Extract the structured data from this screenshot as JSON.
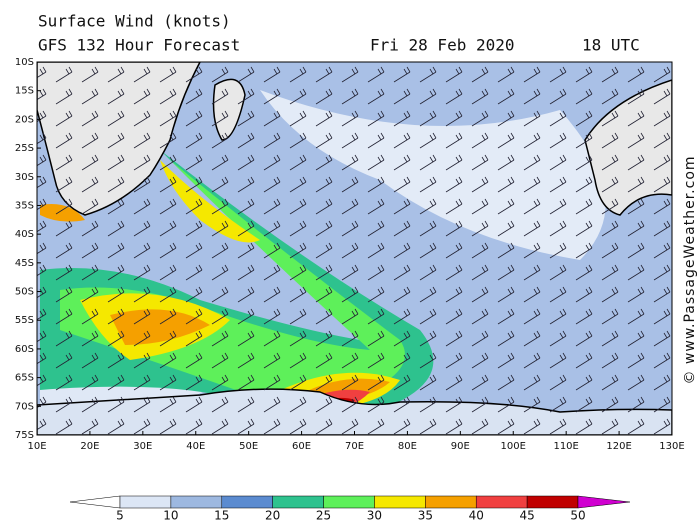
{
  "header": {
    "title": "Surface Wind (knots)",
    "forecast": "GFS 132 Hour Forecast",
    "date": "Fri 28 Feb 2020",
    "time": "18 UTC"
  },
  "latitudes": [
    "10S",
    "15S",
    "20S",
    "25S",
    "30S",
    "35S",
    "40S",
    "45S",
    "50S",
    "55S",
    "60S",
    "65S",
    "70S",
    "75S"
  ],
  "longitudes": [
    "10E",
    "20E",
    "30E",
    "40E",
    "50E",
    "60E",
    "70E",
    "80E",
    "90E",
    "100E",
    "110E",
    "120E",
    "130E"
  ],
  "colorbar": {
    "ticks": [
      5,
      10,
      15,
      20,
      25,
      30,
      35,
      40,
      45,
      50
    ],
    "colors": [
      "#ffffff",
      "#dce6f5",
      "#9db8e0",
      "#5b8bd0",
      "#2ec28e",
      "#5ef05a",
      "#f5e800",
      "#f5a000",
      "#f04040",
      "#c00000",
      "#d000d0"
    ]
  },
  "watermark": "© www.PassageWeather.com"
}
